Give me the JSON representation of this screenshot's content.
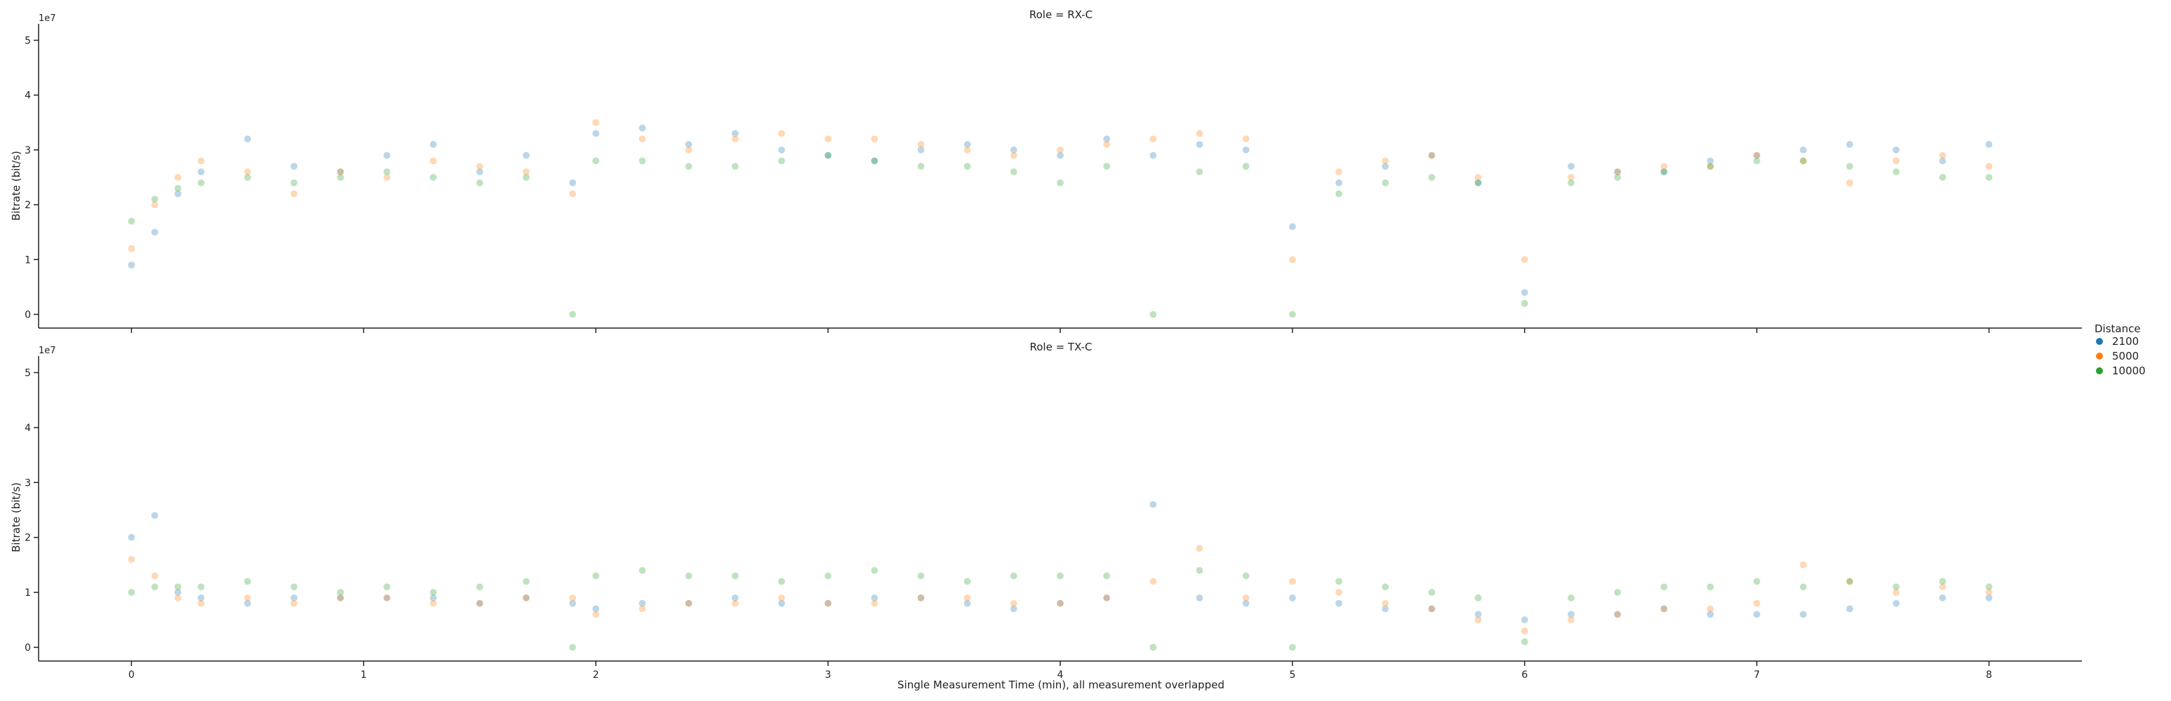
{
  "chart_data": {
    "type": "scatter",
    "xlabel": "Single Measurement Time (min), all measurement overlapped",
    "ylabel": "Bitrate (bit/s)",
    "y_offset_label": "1e7",
    "xlim": [
      -0.4,
      8.4
    ],
    "ylim": [
      -0.25,
      5.3
    ],
    "y_scale_factor": 10000000,
    "x_ticks": [
      "0",
      "1",
      "2",
      "3",
      "4",
      "5",
      "6",
      "7",
      "8"
    ],
    "y_ticks": [
      "0",
      "1",
      "2",
      "3",
      "4",
      "5"
    ],
    "marker_alpha": 0.3,
    "legend": {
      "title": "Distance",
      "placement": "center-right",
      "entries": [
        {
          "label": "2100",
          "color": "#1f77b4"
        },
        {
          "label": "5000",
          "color": "#ff7f0e"
        },
        {
          "label": "10000",
          "color": "#2ca02c"
        }
      ]
    },
    "facets": [
      {
        "title": "Role = RX-C",
        "series": [
          {
            "name": "2100",
            "color": "#1f77b4",
            "x": [
              0.0,
              0.1,
              0.2,
              0.3,
              0.5,
              0.7,
              0.9,
              1.1,
              1.3,
              1.5,
              1.7,
              1.9,
              2.0,
              2.2,
              2.4,
              2.6,
              2.8,
              3.0,
              3.2,
              3.4,
              3.6,
              3.8,
              4.0,
              4.2,
              4.4,
              4.6,
              4.8,
              5.0,
              5.2,
              5.4,
              5.6,
              5.8,
              6.0,
              6.2,
              6.4,
              6.6,
              6.8,
              7.0,
              7.2,
              7.4,
              7.6,
              7.8,
              8.0
            ],
            "y": [
              0.9,
              1.5,
              2.2,
              2.6,
              3.2,
              2.7,
              2.6,
              2.9,
              3.1,
              2.6,
              2.9,
              2.4,
              3.3,
              3.4,
              3.1,
              3.3,
              3.0,
              2.9,
              2.8,
              3.0,
              3.1,
              3.0,
              2.9,
              3.2,
              2.9,
              3.1,
              3.0,
              1.6,
              2.4,
              2.7,
              2.9,
              2.4,
              0.4,
              2.7,
              2.6,
              2.6,
              2.8,
              2.9,
              3.0,
              3.1,
              3.0,
              2.8,
              3.1
            ]
          },
          {
            "name": "5000",
            "color": "#ff7f0e",
            "x": [
              0.0,
              0.1,
              0.2,
              0.3,
              0.5,
              0.7,
              0.9,
              1.1,
              1.3,
              1.5,
              1.7,
              1.9,
              2.0,
              2.2,
              2.4,
              2.6,
              2.8,
              3.0,
              3.2,
              3.4,
              3.6,
              3.8,
              4.0,
              4.2,
              4.4,
              4.6,
              4.8,
              5.0,
              5.2,
              5.4,
              5.6,
              5.8,
              6.0,
              6.2,
              6.4,
              6.6,
              6.8,
              7.0,
              7.2,
              7.4,
              7.6,
              7.8,
              8.0
            ],
            "y": [
              1.2,
              2.0,
              2.5,
              2.8,
              2.6,
              2.2,
              2.6,
              2.5,
              2.8,
              2.7,
              2.6,
              2.2,
              3.5,
              3.2,
              3.0,
              3.2,
              3.3,
              3.2,
              3.2,
              3.1,
              3.0,
              2.9,
              3.0,
              3.1,
              3.2,
              3.3,
              3.2,
              1.0,
              2.6,
              2.8,
              2.9,
              2.5,
              1.0,
              2.5,
              2.6,
              2.7,
              2.7,
              2.9,
              2.8,
              2.4,
              2.8,
              2.9,
              2.7
            ]
          },
          {
            "name": "10000",
            "color": "#2ca02c",
            "x": [
              0.0,
              0.1,
              0.2,
              0.3,
              0.5,
              0.7,
              0.9,
              1.1,
              1.3,
              1.5,
              1.7,
              1.9,
              2.0,
              2.2,
              2.4,
              2.6,
              2.8,
              3.0,
              3.2,
              3.4,
              3.6,
              3.8,
              4.0,
              4.2,
              4.4,
              4.6,
              4.8,
              5.0,
              5.2,
              5.4,
              5.6,
              5.8,
              6.0,
              6.2,
              6.4,
              6.6,
              6.8,
              7.0,
              7.2,
              7.4,
              7.6,
              7.8,
              8.0
            ],
            "y": [
              1.7,
              2.1,
              2.3,
              2.4,
              2.5,
              2.4,
              2.5,
              2.6,
              2.5,
              2.4,
              2.5,
              0.0,
              2.8,
              2.8,
              2.7,
              2.7,
              2.8,
              2.9,
              2.8,
              2.7,
              2.7,
              2.6,
              2.4,
              2.7,
              0.0,
              2.6,
              2.7,
              0.0,
              2.2,
              2.4,
              2.5,
              2.4,
              0.2,
              2.4,
              2.5,
              2.6,
              2.7,
              2.8,
              2.8,
              2.7,
              2.6,
              2.5,
              2.5
            ]
          }
        ]
      },
      {
        "title": "Role = TX-C",
        "series": [
          {
            "name": "2100",
            "color": "#1f77b4",
            "x": [
              0.0,
              0.1,
              0.2,
              0.3,
              0.5,
              0.7,
              0.9,
              1.1,
              1.3,
              1.5,
              1.7,
              1.9,
              2.0,
              2.2,
              2.4,
              2.6,
              2.8,
              3.0,
              3.2,
              3.4,
              3.6,
              3.8,
              4.0,
              4.2,
              4.4,
              4.6,
              4.8,
              5.0,
              5.2,
              5.4,
              5.6,
              5.8,
              6.0,
              6.2,
              6.4,
              6.6,
              6.8,
              7.0,
              7.2,
              7.4,
              7.6,
              7.8,
              8.0
            ],
            "y": [
              2.0,
              2.4,
              1.0,
              0.9,
              0.8,
              0.9,
              0.9,
              0.9,
              0.9,
              0.8,
              0.9,
              0.8,
              0.7,
              0.8,
              0.8,
              0.9,
              0.8,
              0.8,
              0.9,
              0.9,
              0.8,
              0.7,
              0.8,
              0.9,
              2.6,
              0.9,
              0.8,
              0.9,
              0.8,
              0.7,
              0.7,
              0.6,
              0.5,
              0.6,
              0.6,
              0.7,
              0.6,
              0.6,
              0.6,
              0.7,
              0.8,
              0.9,
              0.9
            ]
          },
          {
            "name": "5000",
            "color": "#ff7f0e",
            "x": [
              0.0,
              0.1,
              0.2,
              0.3,
              0.5,
              0.7,
              0.9,
              1.1,
              1.3,
              1.5,
              1.7,
              1.9,
              2.0,
              2.2,
              2.4,
              2.6,
              2.8,
              3.0,
              3.2,
              3.4,
              3.6,
              3.8,
              4.0,
              4.2,
              4.4,
              4.6,
              4.8,
              5.0,
              5.2,
              5.4,
              5.6,
              5.8,
              6.0,
              6.2,
              6.4,
              6.6,
              6.8,
              7.0,
              7.2,
              7.4,
              7.6,
              7.8,
              8.0
            ],
            "y": [
              1.6,
              1.3,
              0.9,
              0.8,
              0.9,
              0.8,
              0.9,
              0.9,
              0.8,
              0.8,
              0.9,
              0.9,
              0.6,
              0.7,
              0.8,
              0.8,
              0.9,
              0.8,
              0.8,
              0.9,
              0.9,
              0.8,
              0.8,
              0.9,
              1.2,
              1.8,
              0.9,
              1.2,
              1.0,
              0.8,
              0.7,
              0.5,
              0.3,
              0.5,
              0.6,
              0.7,
              0.7,
              0.8,
              1.5,
              1.2,
              1.0,
              1.1,
              1.0
            ]
          },
          {
            "name": "10000",
            "color": "#2ca02c",
            "x": [
              0.0,
              0.1,
              0.2,
              0.3,
              0.5,
              0.7,
              0.9,
              1.1,
              1.3,
              1.5,
              1.7,
              1.9,
              2.0,
              2.2,
              2.4,
              2.6,
              2.8,
              3.0,
              3.2,
              3.4,
              3.6,
              3.8,
              4.0,
              4.2,
              4.4,
              4.6,
              4.8,
              5.0,
              5.2,
              5.4,
              5.6,
              5.8,
              6.0,
              6.2,
              6.4,
              6.6,
              6.8,
              7.0,
              7.2,
              7.4,
              7.6,
              7.8,
              8.0
            ],
            "y": [
              1.0,
              1.1,
              1.1,
              1.1,
              1.2,
              1.1,
              1.0,
              1.1,
              1.0,
              1.1,
              1.2,
              0.0,
              1.3,
              1.4,
              1.3,
              1.3,
              1.2,
              1.3,
              1.4,
              1.3,
              1.2,
              1.3,
              1.3,
              1.3,
              0.0,
              1.4,
              1.3,
              0.0,
              1.2,
              1.1,
              1.0,
              0.9,
              0.1,
              0.9,
              1.0,
              1.1,
              1.1,
              1.2,
              1.1,
              1.2,
              1.1,
              1.2,
              1.1
            ]
          }
        ]
      }
    ]
  }
}
